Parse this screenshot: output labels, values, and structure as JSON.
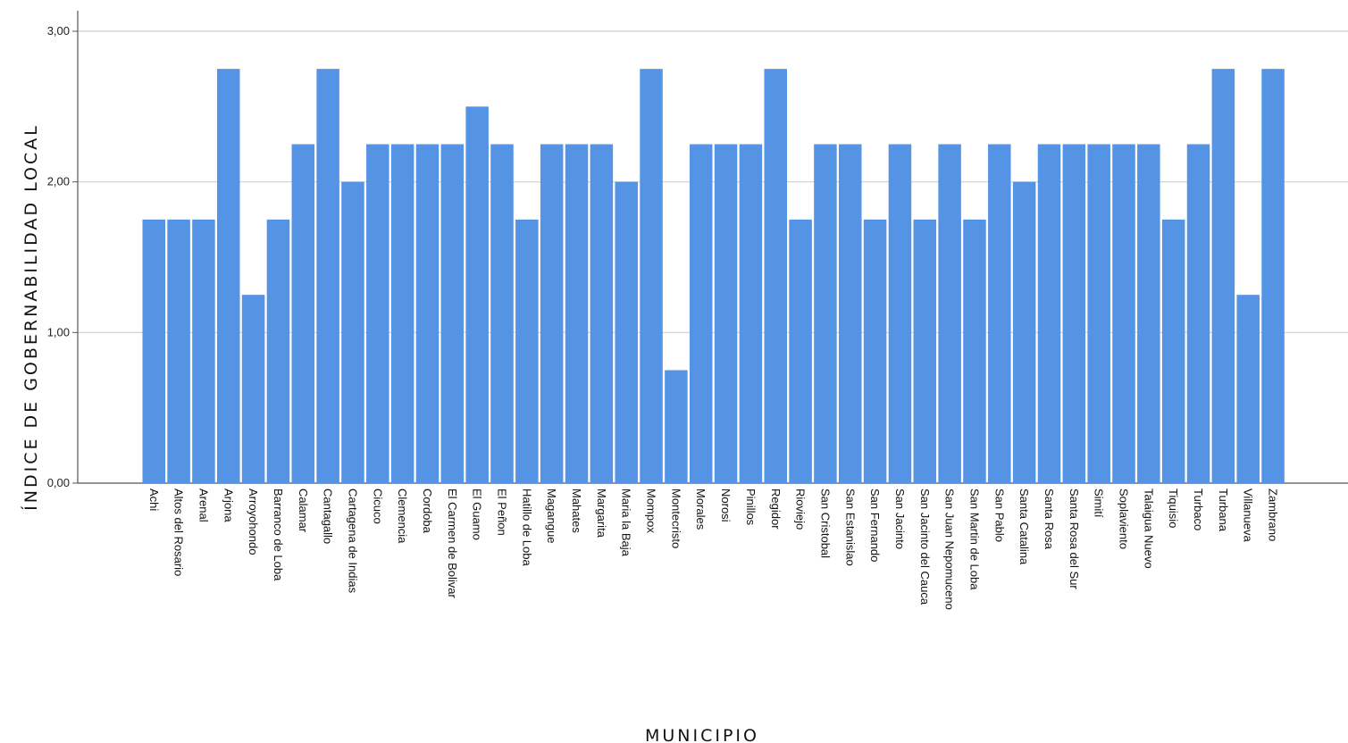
{
  "chart_data": {
    "type": "bar",
    "xlabel": "MUNICIPIO",
    "ylabel": "ÍNDICE DE GOBERNABILIDAD LOCAL",
    "ylim": [
      0,
      3
    ],
    "yticks": [
      0,
      1,
      2,
      3
    ],
    "ytick_labels": [
      "0,00",
      "1,00",
      "2,00",
      "3,00"
    ],
    "grid": true,
    "bar_color": "#5593E5",
    "categories": [
      "Achi",
      "Altos del Rosario",
      "Arenal",
      "Arjona",
      "Arroyohondo",
      "Barranco de Loba",
      "Calamar",
      "Cantagallo",
      "Cartagena de Indias",
      "Cicuco",
      "Clemencia",
      "Cordoba",
      "El Carmen de Bolivar",
      "El Guamo",
      "El Peñon",
      "Hatillo de Loba",
      "Magangue",
      "Mahates",
      "Margarita",
      "Maria la Baja",
      "Mompox",
      "Montecristo",
      "Morales",
      "Norosi",
      "Pinillos",
      "Regidor",
      "Rioviejo",
      "San Cristobal",
      "San Estanislao",
      "San Fernando",
      "San Jacinto",
      "San Jacinto del Cauca",
      "San Juan Nepomuceno",
      "San Martin de Loba",
      "San Pablo",
      "Santa Catalina",
      "Santa Rosa",
      "Santa Rosa del Sur",
      "Simití",
      "Soplaviento",
      "Talaigua Nuevo",
      "Tiquisio",
      "Turbaco",
      "Turbana",
      "Villanueva",
      "Zambrano"
    ],
    "values": [
      1.75,
      1.75,
      1.75,
      2.75,
      1.25,
      1.75,
      2.25,
      2.75,
      2.0,
      2.25,
      2.25,
      2.25,
      2.25,
      2.5,
      2.25,
      1.75,
      2.25,
      2.25,
      2.25,
      2.0,
      2.75,
      0.75,
      2.25,
      2.25,
      2.25,
      2.75,
      1.75,
      2.25,
      2.25,
      1.75,
      2.25,
      1.75,
      2.25,
      1.75,
      2.25,
      2.0,
      2.25,
      2.25,
      2.25,
      2.25,
      2.25,
      1.75,
      2.25,
      2.75,
      1.25,
      2.75
    ]
  }
}
